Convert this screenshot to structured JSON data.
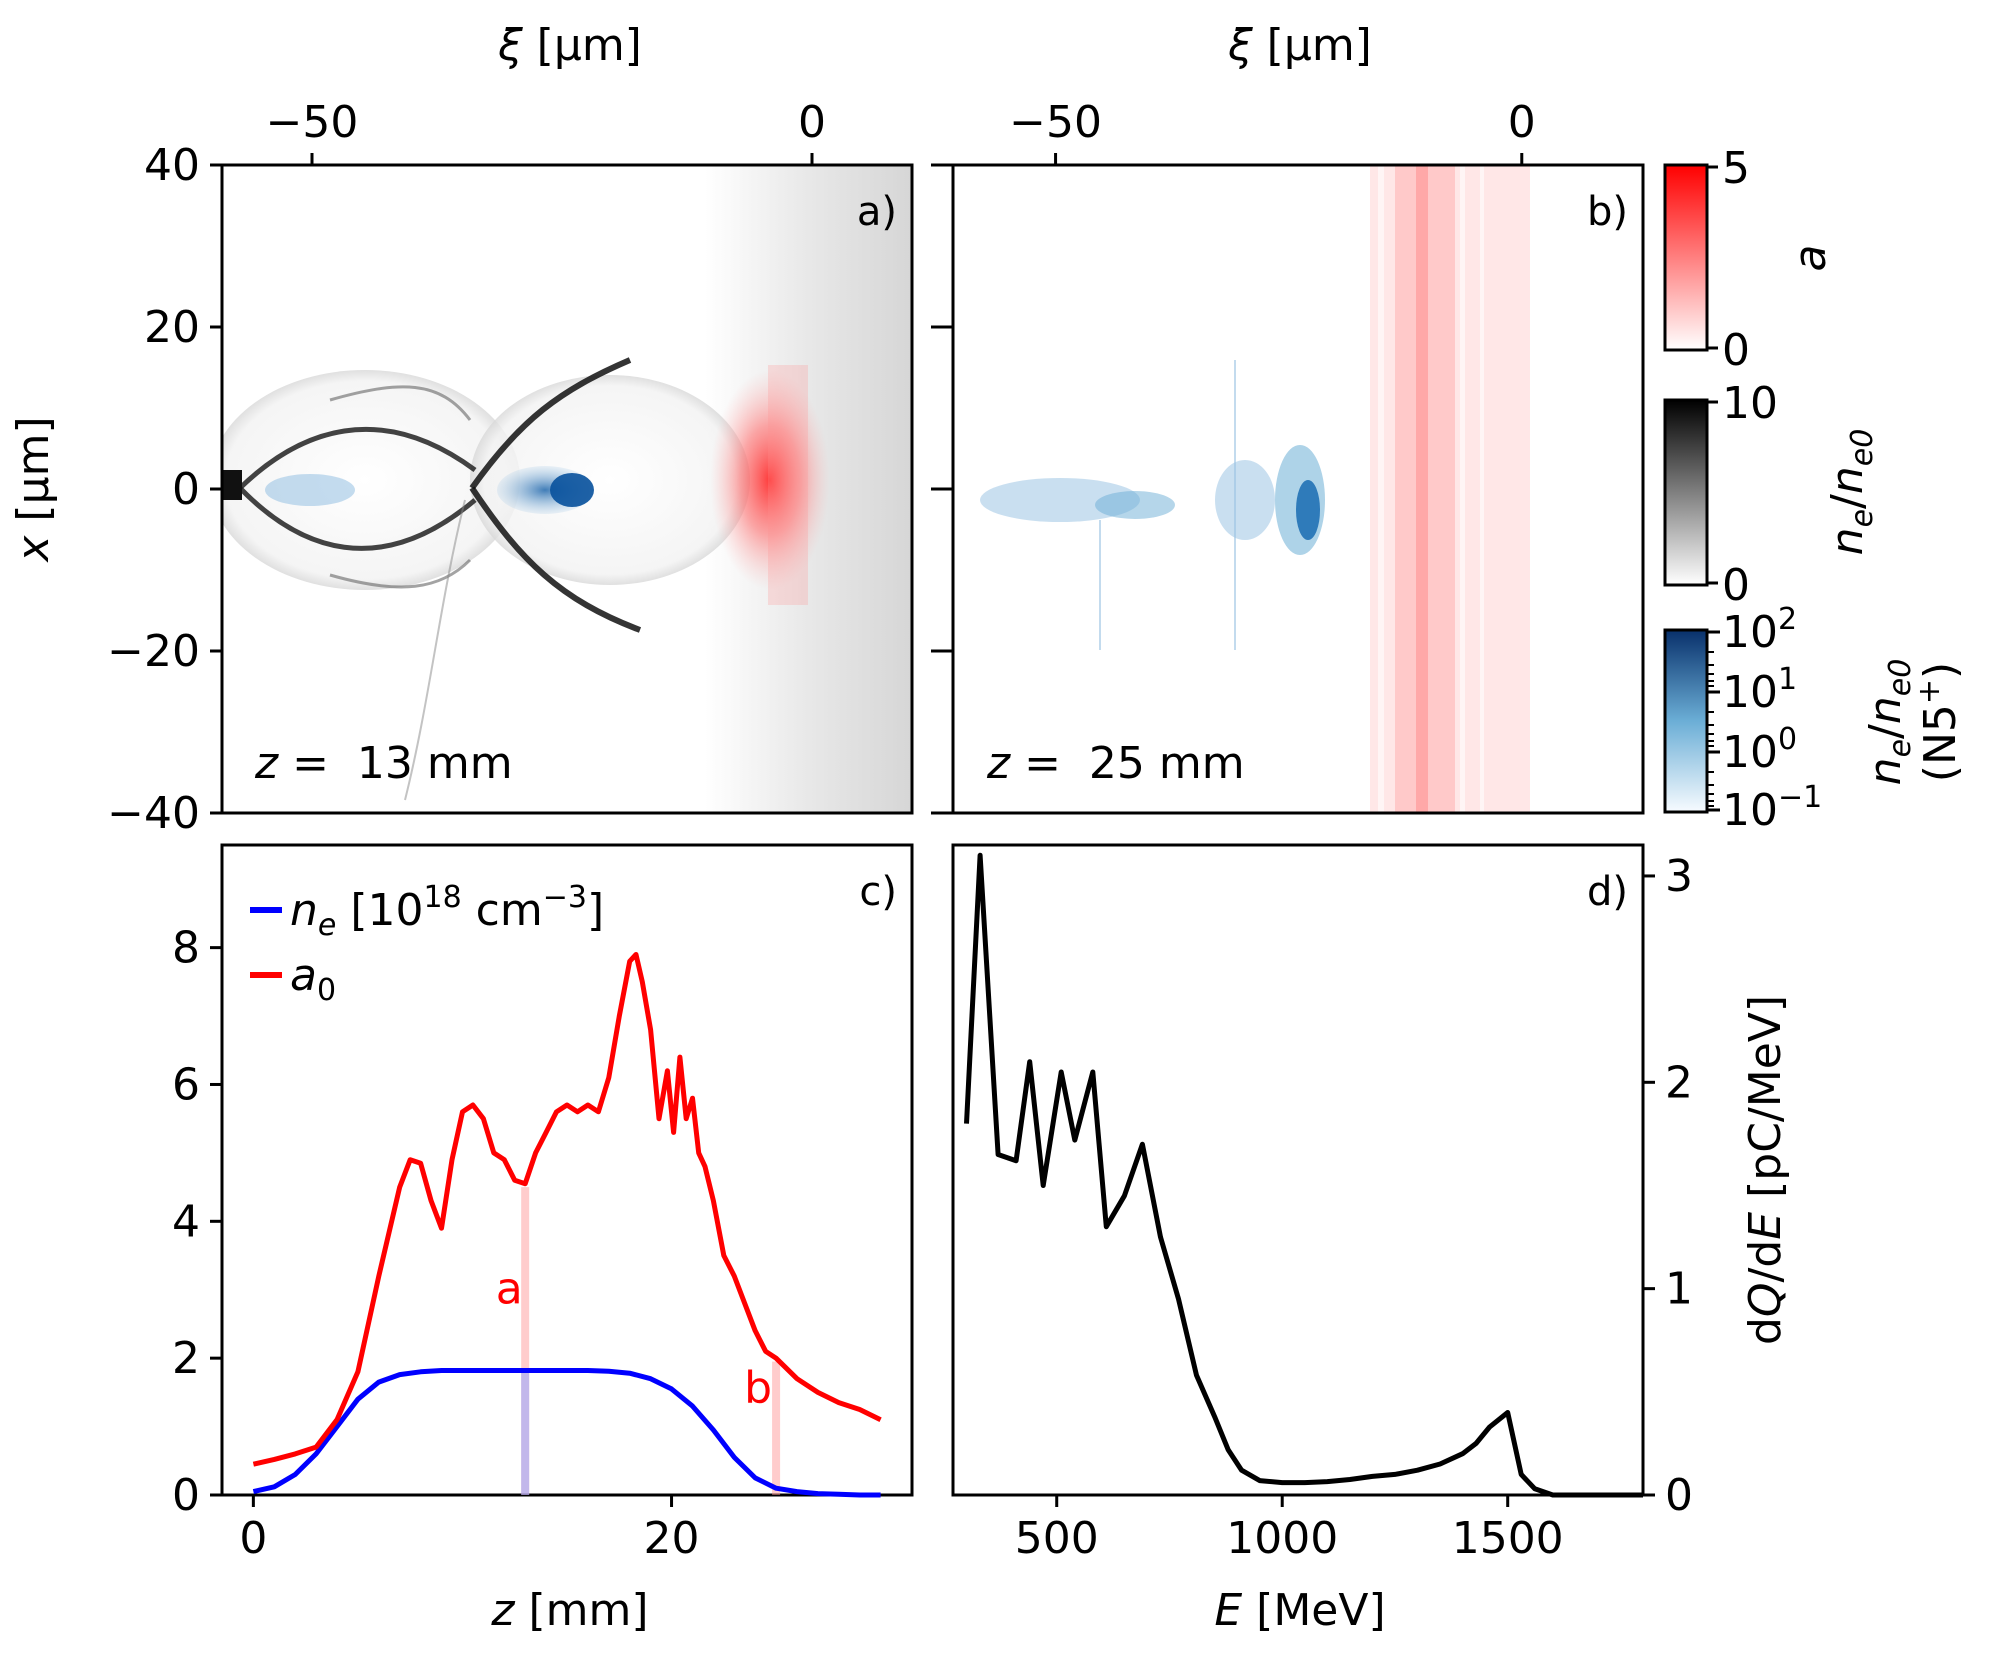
{
  "chart_data": [
    {
      "panel": "a",
      "type": "heatmap",
      "label": "a)",
      "annotation": {
        "prefix": "z",
        "text": " =  13 mm"
      },
      "x_top_label": "ξ [μm]",
      "y_label": "x [μm]",
      "x_top_ticks": [
        "−50",
        "0"
      ],
      "x_top_tick_values": [
        -50,
        0
      ],
      "y_ticks": [
        "40",
        "20",
        "0",
        "−20",
        "−40"
      ],
      "y_tick_values": [
        40,
        20,
        0,
        -20,
        -40
      ],
      "xlim": [
        -59,
        10
      ],
      "ylim": [
        -40,
        40
      ]
    },
    {
      "panel": "b",
      "type": "heatmap",
      "label": "b)",
      "annotation": {
        "prefix": "z",
        "text": " =  25 mm"
      },
      "x_top_label": "ξ [μm]",
      "x_top_ticks": [
        "−50",
        "0"
      ],
      "x_top_tick_values": [
        -50,
        0
      ],
      "xlim": [
        -61,
        13
      ],
      "ylim": [
        -40,
        40
      ]
    },
    {
      "panel": "c",
      "type": "line",
      "label": "c)",
      "xlabel": "z [mm]",
      "x_ticks": [
        "0",
        "20"
      ],
      "x_tick_values": [
        0,
        20
      ],
      "y_ticks": [
        "0",
        "2",
        "4",
        "6",
        "8"
      ],
      "y_tick_values": [
        0,
        2,
        4,
        6,
        8
      ],
      "xlim": [
        -1.5,
        31.5
      ],
      "ylim": [
        0,
        9.5
      ],
      "legend": [
        {
          "name": "ne [10^18 cm^-3]",
          "color": "#0000ff"
        },
        {
          "name": "a0",
          "color": "#ff0000"
        }
      ],
      "series": [
        {
          "name": "n_e [10^18 cm^-3]",
          "color": "#0000ff",
          "x": [
            0,
            1,
            2,
            3,
            4,
            5,
            6,
            7,
            8,
            9,
            10,
            11,
            12,
            13,
            14,
            15,
            16,
            17,
            18,
            19,
            20,
            21,
            22,
            23,
            24,
            25,
            26,
            27,
            28,
            29,
            30
          ],
          "y": [
            0.05,
            0.12,
            0.3,
            0.6,
            1.0,
            1.4,
            1.65,
            1.76,
            1.8,
            1.82,
            1.82,
            1.82,
            1.82,
            1.82,
            1.82,
            1.82,
            1.82,
            1.81,
            1.78,
            1.7,
            1.55,
            1.3,
            0.95,
            0.55,
            0.25,
            0.1,
            0.05,
            0.02,
            0.01,
            0.0,
            0.0
          ]
        },
        {
          "name": "a0",
          "color": "#ff0000",
          "x": [
            0,
            1,
            2,
            3,
            4,
            5,
            6,
            7,
            7.5,
            8,
            8.5,
            9,
            9.5,
            10,
            10.5,
            11,
            11.5,
            12,
            12.5,
            13,
            13.5,
            14,
            14.5,
            15,
            15.5,
            16,
            16.5,
            17,
            17.5,
            18,
            18.3,
            18.6,
            19,
            19.4,
            19.8,
            20.1,
            20.4,
            20.7,
            21,
            21.3,
            21.6,
            22,
            22.5,
            23,
            23.5,
            24,
            24.5,
            25,
            26,
            27,
            28,
            29,
            30
          ],
          "y": [
            0.45,
            0.52,
            0.6,
            0.7,
            1.1,
            1.8,
            3.2,
            4.5,
            4.9,
            4.85,
            4.3,
            3.9,
            4.9,
            5.6,
            5.7,
            5.5,
            5.0,
            4.9,
            4.6,
            4.55,
            5.0,
            5.3,
            5.6,
            5.7,
            5.6,
            5.7,
            5.6,
            6.1,
            7.0,
            7.8,
            7.9,
            7.5,
            6.8,
            5.5,
            6.2,
            5.3,
            6.4,
            5.5,
            5.8,
            5.0,
            4.8,
            4.3,
            3.5,
            3.2,
            2.8,
            2.4,
            2.1,
            2.0,
            1.7,
            1.5,
            1.35,
            1.25,
            1.1
          ]
        }
      ],
      "markers": [
        {
          "label": "a",
          "z": 13,
          "color": "#ff0000"
        },
        {
          "label": "b",
          "z": 25,
          "color": "#ff0000"
        }
      ]
    },
    {
      "panel": "d",
      "type": "line",
      "label": "d)",
      "xlabel": "E [MeV]",
      "ylabel": "dQ/dE [pC/MeV]",
      "x_ticks": [
        "500",
        "1000",
        "1500"
      ],
      "x_tick_values": [
        500,
        1000,
        1500
      ],
      "y_ticks": [
        "0",
        "1",
        "2",
        "3"
      ],
      "y_tick_values": [
        0,
        1,
        2,
        3
      ],
      "xlim": [
        270,
        1800
      ],
      "ylim": [
        0,
        3.15
      ],
      "series": [
        {
          "name": "dQ/dE",
          "color": "#000000",
          "x": [
            300,
            330,
            370,
            410,
            440,
            470,
            510,
            540,
            580,
            610,
            650,
            690,
            730,
            770,
            810,
            850,
            880,
            910,
            950,
            1000,
            1050,
            1100,
            1150,
            1200,
            1250,
            1300,
            1350,
            1400,
            1430,
            1460,
            1500,
            1530,
            1560,
            1600,
            1700,
            1800
          ],
          "y": [
            1.8,
            3.1,
            1.65,
            1.62,
            2.1,
            1.5,
            2.05,
            1.72,
            2.05,
            1.3,
            1.45,
            1.7,
            1.25,
            0.95,
            0.58,
            0.38,
            0.22,
            0.12,
            0.07,
            0.06,
            0.06,
            0.065,
            0.075,
            0.09,
            0.1,
            0.12,
            0.15,
            0.2,
            0.25,
            0.33,
            0.4,
            0.1,
            0.03,
            0.0,
            0.0,
            0.0
          ]
        }
      ]
    }
  ],
  "colorbars": [
    {
      "label": "a",
      "color": "#ff0000",
      "min_label": "0",
      "max_label": "5"
    },
    {
      "label": "ne/ne0",
      "color": "#000000",
      "min_label": "0",
      "max_label": "10"
    },
    {
      "label": "ne/ne0 (N5+)",
      "line2": "(N5",
      "line2_sup": "+",
      "line2_end": ")",
      "color": "#08519c",
      "tick_labels": [
        "10",
        "10",
        "10",
        "10"
      ],
      "tick_exps": [
        "2",
        "1",
        "0",
        "−1"
      ]
    }
  ],
  "legend_text": {
    "ne_base": "n",
    "ne_sub": "e",
    "ne_rest1": " [10",
    "ne_sup1": "18",
    "ne_rest2": " cm",
    "ne_sup2": "−3",
    "ne_rest3": "]",
    "a0_base": "a",
    "a0_sub": "0"
  },
  "axis_text": {
    "xi": "ξ",
    "xi_rest": " [μm]",
    "x": "x",
    "x_rest": " [μm]",
    "z": "z",
    "z_rest": " [mm]",
    "E": "E",
    "E_rest": " [MeV]",
    "dq_1": "d",
    "dq_Q": "Q",
    "dq_2": "/d",
    "dq_E": "E",
    "dq_rest": " [pC/MeV]"
  }
}
